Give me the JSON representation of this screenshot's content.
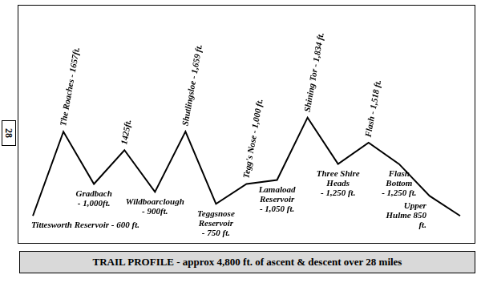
{
  "chart_data": {
    "type": "line",
    "title": "TRAIL PROFILE - approx 4,800 ft. of ascent & descent over 28 miles",
    "annotation": "28",
    "categories": [
      "Tittesworth Reservoir - 600 ft.",
      "The Roaches - 1657ft.",
      "Gradbach - 1,000ft.",
      "1425ft.",
      "Wildboarclough - 900ft.",
      "Shutlingsloe - 1,659 ft.",
      "Teggsnose Reservoir - 750 ft.",
      "Tegg's Nose - 1,000 ft.",
      "Lamaload Reservoir - 1,050 ft.",
      "Shining Tor - 1,834 ft.",
      "Three Shire Heads - 1,250 ft.",
      "Flash - 1,518 ft.",
      "Flash Bottom - 1,250 ft.",
      "Upper Hulme 850 ft.",
      null
    ],
    "values": [
      600,
      1657,
      1000,
      1425,
      900,
      1659,
      750,
      1000,
      1050,
      1834,
      1250,
      1518,
      1250,
      850,
      600
    ],
    "color": "#000000",
    "ylim": [
      250,
      3250
    ],
    "tick_labels": false,
    "grid": false
  }
}
